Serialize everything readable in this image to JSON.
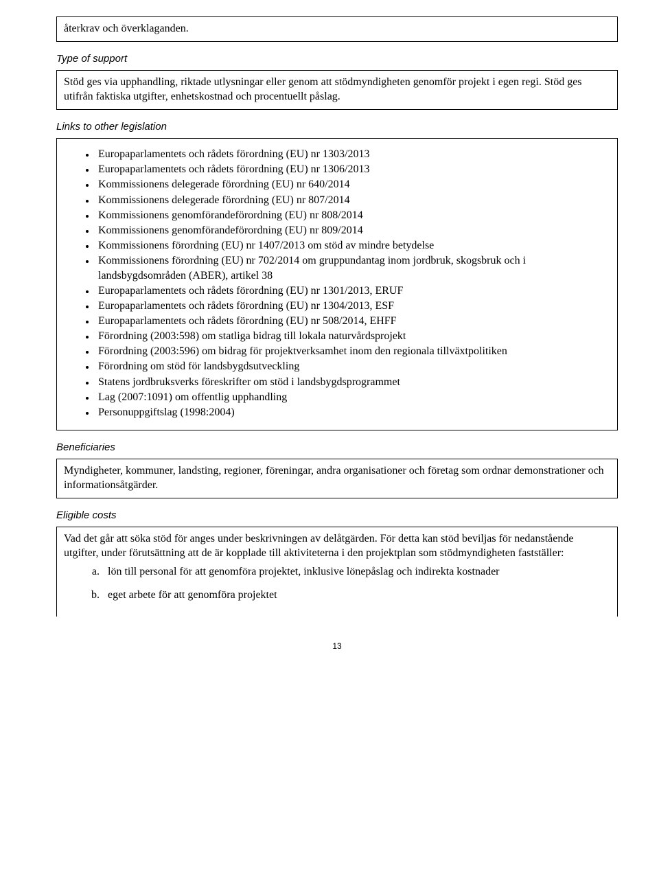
{
  "box1": {
    "text": "återkrav och överklaganden."
  },
  "label_type_of_support": "Type of support",
  "box2": {
    "text": "Stöd ges via upphandling, riktade utlysningar eller genom att stödmyndigheten genomför projekt i egen regi. Stöd ges utifrån faktiska utgifter, enhetskostnad och procentuellt påslag."
  },
  "label_links": "Links to other legislation",
  "box3": {
    "items": [
      "Europaparlamentets och rådets förordning (EU) nr 1303/2013",
      "Europaparlamentets och rådets förordning (EU) nr 1306/2013",
      "Kommissionens delegerade förordning (EU) nr 640/2014",
      "Kommissionens delegerade förordning (EU) nr 807/2014",
      "Kommissionens genomförandeförordning (EU) nr 808/2014",
      "Kommissionens genomförandeförordning (EU) nr 809/2014",
      "Kommissionens förordning (EU) nr 1407/2013 om stöd av mindre betydelse",
      "Kommissionens förordning (EU) nr 702/2014 om gruppundantag inom jordbruk, skogsbruk och i landsbygdsområden (ABER), artikel 38",
      "Europaparlamentets och rådets förordning (EU) nr 1301/2013, ERUF",
      "Europaparlamentets och rådets förordning (EU) nr 1304/2013, ESF",
      "Europaparlamentets och rådets förordning (EU) nr 508/2014, EHFF",
      "Förordning (2003:598) om statliga bidrag till lokala naturvårdsprojekt",
      "Förordning (2003:596) om bidrag för projektverksamhet inom den regionala tillväxtpolitiken",
      "Förordning om stöd för landsbygdsutveckling",
      "Statens jordbruksverks föreskrifter om stöd i landsbygdsprogrammet",
      "Lag (2007:1091) om offentlig upphandling",
      "Personuppgiftslag (1998:2004)"
    ]
  },
  "label_beneficiaries": "Beneficiaries",
  "box4": {
    "text": "Myndigheter, kommuner, landsting, regioner, föreningar, andra organisationer och företag som ordnar demonstrationer och informationsåtgärder."
  },
  "label_eligible": "Eligible costs",
  "box5": {
    "intro": "Vad det går att söka stöd för anges under beskrivningen av delåtgärden. För detta kan stöd beviljas för nedanstående utgifter, under förutsättning att de är kopplade till aktiviteterna i den projektplan som stödmyndigheten fastställer:",
    "items": [
      "lön till personal för att genomföra projektet, inklusive lönepåslag och indirekta kostnader",
      "eget arbete för att genomföra projektet"
    ]
  },
  "page_number": "13",
  "style": {
    "background_color": "#ffffff",
    "text_color": "#000000",
    "border_color": "#000000",
    "body_font_family": "Times New Roman",
    "label_font_family": "Arial",
    "body_font_size_pt": 12,
    "label_font_size_pt": 11,
    "page_number_font_size_pt": 9
  }
}
